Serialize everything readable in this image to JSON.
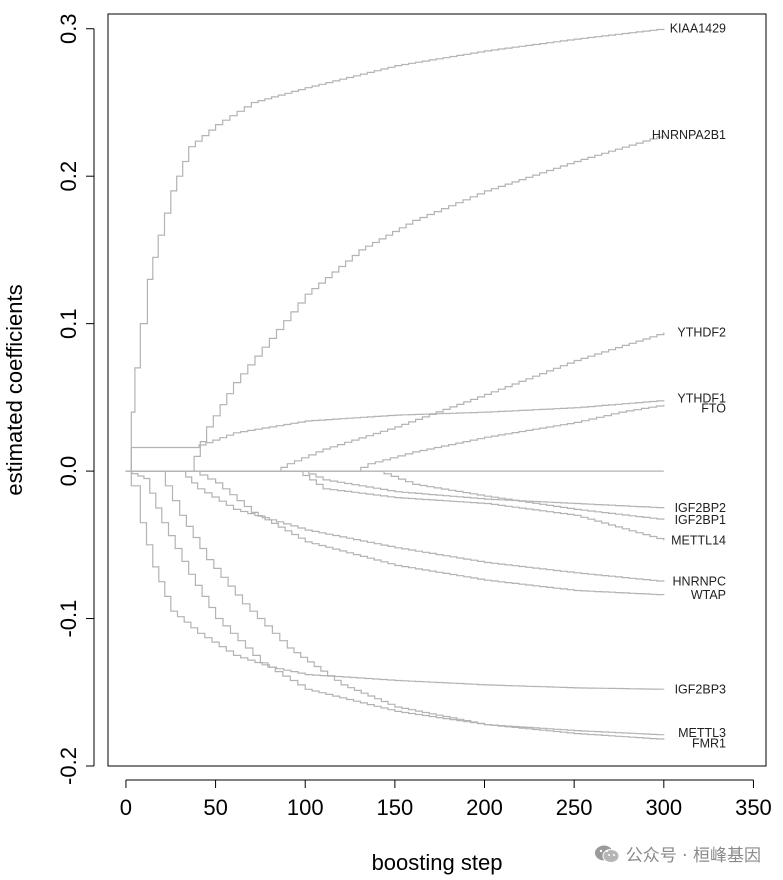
{
  "watermark": "公众号 · 桓峰基因",
  "colors": {
    "line": "#b3b3b3",
    "axis": "#000000",
    "text": "#000000",
    "watermark": "#8a8a8a"
  },
  "chart_data": {
    "type": "line",
    "title": "",
    "xlabel": "boosting step",
    "ylabel": "estimated coefficients",
    "xlim": [
      -10,
      357
    ],
    "ylim": [
      -0.2,
      0.31
    ],
    "xticks": [
      0,
      50,
      100,
      150,
      200,
      250,
      300,
      350
    ],
    "yticks": [
      -0.2,
      -0.1,
      0.0,
      0.1,
      0.2,
      0.3
    ],
    "ytick_labels": [
      "-0.2",
      "-0.1",
      "0.0",
      "0.1",
      "0.2",
      "0.3"
    ],
    "series": [
      {
        "name": "KIAA1429",
        "x": [
          0,
          3,
          5,
          8,
          12,
          18,
          25,
          35,
          50,
          70,
          100,
          150,
          200,
          250,
          300
        ],
        "values": [
          0,
          0.04,
          0.07,
          0.1,
          0.13,
          0.16,
          0.19,
          0.22,
          0.235,
          0.25,
          0.26,
          0.275,
          0.285,
          0.293,
          0.3
        ]
      },
      {
        "name": "HNRNPA2B1",
        "x": [
          0,
          35,
          38,
          45,
          60,
          80,
          100,
          130,
          160,
          200,
          250,
          300
        ],
        "values": [
          0,
          0,
          0.01,
          0.03,
          0.06,
          0.09,
          0.12,
          0.15,
          0.17,
          0.19,
          0.21,
          0.228
        ]
      },
      {
        "name": "YTHDF2",
        "x": [
          0,
          83,
          90,
          110,
          150,
          200,
          250,
          300
        ],
        "values": [
          0,
          0,
          0.005,
          0.015,
          0.03,
          0.052,
          0.075,
          0.094
        ]
      },
      {
        "name": "YTHDF1",
        "x": [
          0,
          3,
          37,
          60,
          100,
          150,
          200,
          250,
          300
        ],
        "values": [
          0,
          0.016,
          0.016,
          0.026,
          0.034,
          0.038,
          0.04,
          0.043,
          0.048
        ]
      },
      {
        "name": "FTO",
        "x": [
          0,
          127,
          135,
          160,
          200,
          250,
          275,
          300
        ],
        "values": [
          0,
          0,
          0.005,
          0.013,
          0.023,
          0.033,
          0.04,
          0.045
        ]
      },
      {
        "name": "IGF2BP2",
        "x": [
          0,
          98,
          110,
          150,
          200,
          250,
          300
        ],
        "values": [
          0,
          0,
          -0.006,
          -0.014,
          -0.019,
          -0.022,
          -0.025
        ]
      },
      {
        "name": "IGF2BP1",
        "x": [
          0,
          140,
          160,
          200,
          250,
          300
        ],
        "values": [
          0,
          0,
          -0.009,
          -0.017,
          -0.026,
          -0.033
        ]
      },
      {
        "name": "METTL14",
        "x": [
          0,
          95,
          110,
          150,
          200,
          250,
          300
        ],
        "values": [
          0,
          0,
          -0.012,
          -0.018,
          -0.022,
          -0.03,
          -0.047
        ]
      },
      {
        "name": "HNRNPC",
        "x": [
          0,
          30,
          40,
          60,
          100,
          150,
          200,
          250,
          300
        ],
        "values": [
          0,
          0,
          -0.012,
          -0.026,
          -0.04,
          -0.052,
          -0.062,
          -0.069,
          -0.075
        ]
      },
      {
        "name": "WTAP",
        "x": [
          0,
          37,
          50,
          70,
          100,
          150,
          200,
          250,
          300
        ],
        "values": [
          0,
          0,
          -0.008,
          -0.028,
          -0.048,
          -0.064,
          -0.074,
          -0.081,
          -0.084
        ]
      },
      {
        "name": "IGF2BP3",
        "x": [
          0,
          3,
          8,
          15,
          25,
          40,
          60,
          80,
          100,
          125,
          150,
          200,
          250,
          300
        ],
        "values": [
          0,
          -0.01,
          -0.035,
          -0.065,
          -0.095,
          -0.11,
          -0.125,
          -0.133,
          -0.138,
          -0.14,
          -0.142,
          -0.145,
          -0.147,
          -0.148
        ]
      },
      {
        "name": "METTL3",
        "x": [
          0,
          10,
          20,
          35,
          50,
          75,
          100,
          150,
          200,
          250,
          300
        ],
        "values": [
          0,
          -0.005,
          -0.035,
          -0.07,
          -0.1,
          -0.13,
          -0.148,
          -0.163,
          -0.172,
          -0.176,
          -0.179
        ]
      },
      {
        "name": "FMR1",
        "x": [
          0,
          18,
          30,
          45,
          65,
          90,
          120,
          150,
          200,
          250,
          300
        ],
        "values": [
          0,
          0,
          -0.03,
          -0.06,
          -0.09,
          -0.12,
          -0.145,
          -0.16,
          -0.172,
          -0.178,
          -0.182
        ]
      }
    ],
    "zero_line": {
      "x": [
        0,
        300
      ],
      "value": 0
    }
  }
}
